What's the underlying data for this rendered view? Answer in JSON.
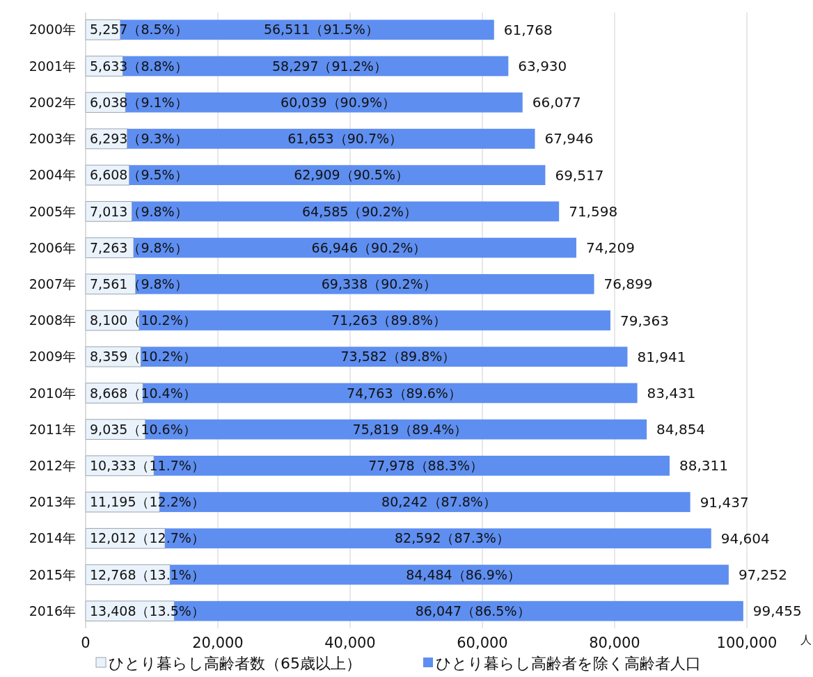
{
  "chart_data": {
    "type": "bar",
    "orientation": "horizontal",
    "stacked": true,
    "categories": [
      "2000年",
      "2001年",
      "2002年",
      "2003年",
      "2004年",
      "2005年",
      "2006年",
      "2007年",
      "2008年",
      "2009年",
      "2010年",
      "2011年",
      "2012年",
      "2013年",
      "2014年",
      "2015年",
      "2016年"
    ],
    "series": [
      {
        "name": "ひとり暮らし高齢者数（65歳以上）",
        "color": "#eaf3fb",
        "values": [
          5257,
          5633,
          6038,
          6293,
          6608,
          7013,
          7263,
          7561,
          8100,
          8359,
          8668,
          9035,
          10333,
          11195,
          12012,
          12768,
          13408
        ],
        "value_labels": [
          "5,257（8.5%）",
          "5,633（8.8%）",
          "6,038（9.1%）",
          "6,293（9.3%）",
          "6,608（9.5%）",
          "7,013（9.8%）",
          "7,263（9.8%）",
          "7,561（9.8%）",
          "8,100（10.2%）",
          "8,359（10.2%）",
          "8,668（10.4%）",
          "9,035（10.6%）",
          "10,333（11.7%）",
          "11,195（12.2%）",
          "12,012（12.7%）",
          "12,768（13.1%）",
          "13,408（13.5%）"
        ]
      },
      {
        "name": "ひとり暮らし高齢者を除く高齢者人口",
        "color": "#5e8ef0",
        "values": [
          56511,
          58297,
          60039,
          61653,
          62909,
          64585,
          66946,
          69338,
          71263,
          73582,
          74763,
          75819,
          77978,
          80242,
          82592,
          84484,
          86047
        ],
        "value_labels": [
          "56,511（91.5%）",
          "58,297（91.2%）",
          "60,039（90.9%）",
          "61,653（90.7%）",
          "62,909（90.5%）",
          "64,585（90.2%）",
          "66,946（90.2%）",
          "69,338（90.2%）",
          "71,263（89.8%）",
          "73,582（89.8%）",
          "74,763（89.6%）",
          "75,819（89.4%）",
          "77,978（88.3%）",
          "80,242（87.8%）",
          "82,592（87.3%）",
          "84,484（86.9%）",
          "86,047（86.5%）"
        ]
      }
    ],
    "totals": [
      "61,768",
      "63,930",
      "66,077",
      "67,946",
      "69,517",
      "71,598",
      "74,209",
      "76,899",
      "79,363",
      "81,941",
      "83,431",
      "84,854",
      "88,311",
      "91,437",
      "94,604",
      "97,252",
      "99,455"
    ],
    "xlim": [
      0,
      100000
    ],
    "xticks": [
      0,
      {
        "value": 20000,
        "label": "20,000"
      },
      {
        "value": 40000,
        "label": "40,000"
      },
      {
        "value": 60000,
        "label": "60,000"
      },
      {
        "value": 80000,
        "label": "80,000"
      },
      {
        "value": 100000,
        "label": "100,000"
      }
    ],
    "xlabel": "人",
    "grid": "x",
    "legend": "bottom"
  }
}
